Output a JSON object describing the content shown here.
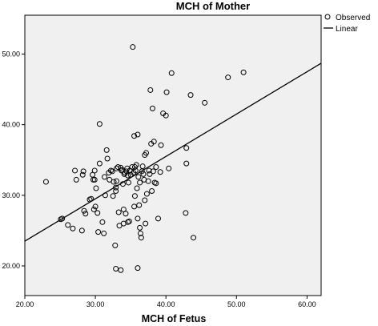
{
  "chart_data": {
    "type": "scatter",
    "title": "MCH of Mother",
    "xlabel": "MCH of Fetus",
    "ylabel": "",
    "xlim": [
      20,
      62
    ],
    "ylim": [
      15.8,
      55.5
    ],
    "xticks": [
      20,
      30,
      40,
      50,
      60
    ],
    "yticks": [
      20,
      30,
      40,
      50
    ],
    "xtick_labels": [
      "20.00",
      "30.00",
      "40.00",
      "50.00",
      "60.00"
    ],
    "ytick_labels": [
      "20.00",
      "30.00",
      "40.00",
      "50.00"
    ],
    "grid": false,
    "legend_position": "top-right",
    "colors": {
      "plot_background": "#f0f0f0",
      "marker": "#000000",
      "line": "#000000"
    },
    "legend": [
      {
        "label": "Observed",
        "marker": "circle"
      },
      {
        "label": "Linear",
        "marker": "line"
      }
    ],
    "series": [
      {
        "name": "Observed",
        "kind": "scatter",
        "points": [
          [
            23.0,
            31.9
          ],
          [
            25.1,
            26.6
          ],
          [
            25.3,
            26.7
          ],
          [
            26.1,
            25.8
          ],
          [
            26.8,
            25.3
          ],
          [
            27.1,
            33.5
          ],
          [
            27.3,
            32.2
          ],
          [
            28.1,
            25.0
          ],
          [
            28.2,
            32.9
          ],
          [
            28.3,
            33.4
          ],
          [
            28.4,
            27.8
          ],
          [
            28.6,
            27.4
          ],
          [
            29.2,
            29.4
          ],
          [
            29.4,
            29.5
          ],
          [
            29.6,
            32.9
          ],
          [
            29.7,
            32.2
          ],
          [
            29.8,
            28.0
          ],
          [
            29.9,
            32.2
          ],
          [
            29.9,
            33.5
          ],
          [
            30.0,
            28.4
          ],
          [
            30.1,
            31.0
          ],
          [
            30.3,
            27.5
          ],
          [
            30.4,
            24.8
          ],
          [
            30.6,
            34.5
          ],
          [
            30.6,
            40.1
          ],
          [
            31.0,
            26.2
          ],
          [
            31.2,
            24.6
          ],
          [
            31.3,
            32.6
          ],
          [
            31.4,
            30.0
          ],
          [
            31.6,
            36.4
          ],
          [
            31.7,
            35.2
          ],
          [
            31.9,
            33.2
          ],
          [
            32.0,
            32.2
          ],
          [
            32.2,
            33.5
          ],
          [
            32.4,
            33.4
          ],
          [
            32.5,
            29.9
          ],
          [
            32.6,
            31.9
          ],
          [
            32.8,
            22.9
          ],
          [
            32.9,
            19.6
          ],
          [
            32.9,
            31.1
          ],
          [
            32.9,
            30.6
          ],
          [
            33.0,
            33.8
          ],
          [
            33.0,
            32.0
          ],
          [
            33.2,
            34.0
          ],
          [
            33.3,
            27.6
          ],
          [
            33.4,
            25.7
          ],
          [
            33.6,
            33.9
          ],
          [
            33.6,
            19.4
          ],
          [
            33.7,
            33.5
          ],
          [
            33.8,
            33.6
          ],
          [
            33.9,
            31.6
          ],
          [
            34.0,
            26.0
          ],
          [
            34.0,
            28.0
          ],
          [
            34.1,
            33.0
          ],
          [
            34.2,
            33.2
          ],
          [
            34.3,
            27.4
          ],
          [
            34.4,
            33.4
          ],
          [
            34.5,
            33.8
          ],
          [
            34.6,
            32.8
          ],
          [
            34.6,
            26.2
          ],
          [
            34.7,
            31.8
          ],
          [
            34.8,
            26.3
          ],
          [
            34.9,
            33.5
          ],
          [
            35.0,
            32.9
          ],
          [
            35.2,
            34.0
          ],
          [
            35.3,
            51.0
          ],
          [
            35.4,
            33.2
          ],
          [
            35.5,
            38.4
          ],
          [
            35.5,
            28.4
          ],
          [
            35.6,
            29.9
          ],
          [
            35.6,
            34.0
          ],
          [
            35.7,
            33.5
          ],
          [
            35.8,
            34.3
          ],
          [
            35.9,
            31.0
          ],
          [
            36.0,
            19.7
          ],
          [
            36.0,
            26.7
          ],
          [
            36.0,
            38.6
          ],
          [
            36.1,
            32.6
          ],
          [
            36.2,
            28.6
          ],
          [
            36.3,
            25.4
          ],
          [
            36.3,
            31.8
          ],
          [
            36.4,
            24.6
          ],
          [
            36.5,
            24.0
          ],
          [
            36.6,
            33.4
          ],
          [
            36.7,
            34.1
          ],
          [
            36.8,
            33.0
          ],
          [
            36.9,
            32.2
          ],
          [
            37.0,
            29.3
          ],
          [
            37.0,
            35.7
          ],
          [
            37.1,
            26.0
          ],
          [
            37.2,
            36.0
          ],
          [
            37.3,
            30.2
          ],
          [
            37.5,
            32.0
          ],
          [
            37.6,
            33.5
          ],
          [
            37.7,
            33.0
          ],
          [
            37.8,
            44.9
          ],
          [
            37.9,
            37.3
          ],
          [
            38.0,
            30.6
          ],
          [
            38.1,
            42.3
          ],
          [
            38.2,
            33.4
          ],
          [
            38.3,
            37.6
          ],
          [
            38.4,
            31.8
          ],
          [
            38.6,
            34.0
          ],
          [
            38.6,
            31.7
          ],
          [
            38.9,
            26.7
          ],
          [
            39.2,
            33.3
          ],
          [
            39.3,
            37.1
          ],
          [
            39.6,
            41.6
          ],
          [
            40.0,
            41.3
          ],
          [
            40.1,
            44.6
          ],
          [
            40.4,
            33.8
          ],
          [
            40.8,
            47.3
          ],
          [
            42.8,
            27.5
          ],
          [
            42.9,
            34.5
          ],
          [
            42.9,
            36.7
          ],
          [
            43.5,
            44.2
          ],
          [
            43.9,
            24.0
          ],
          [
            45.5,
            43.1
          ],
          [
            48.8,
            46.7
          ],
          [
            51.0,
            47.4
          ]
        ]
      },
      {
        "name": "Linear",
        "kind": "line",
        "points": [
          [
            20.0,
            23.5
          ],
          [
            62.0,
            48.7
          ]
        ]
      }
    ]
  }
}
